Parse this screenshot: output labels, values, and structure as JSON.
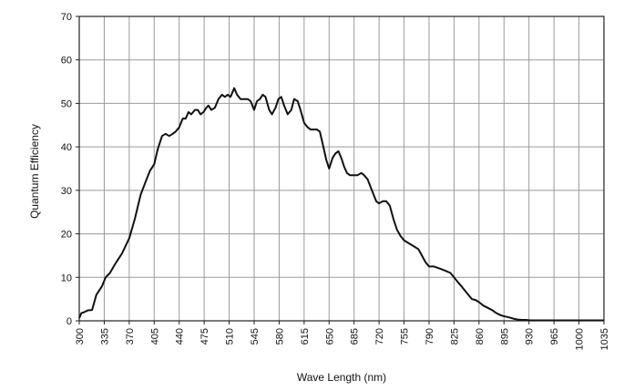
{
  "chart_data": {
    "type": "line",
    "title": "",
    "xlabel": "Wave Length (nm)",
    "ylabel": "Quantum Efficiency",
    "xlim": [
      300,
      1035
    ],
    "ylim": [
      0,
      70
    ],
    "x_ticks": [
      300,
      335,
      370,
      405,
      440,
      475,
      510,
      545,
      580,
      615,
      650,
      685,
      720,
      755,
      790,
      825,
      860,
      895,
      930,
      965,
      1000,
      1035
    ],
    "y_ticks": [
      0,
      10,
      20,
      30,
      40,
      50,
      60,
      70
    ],
    "grid": true,
    "legend": "none",
    "line_color": "#111111",
    "series": [
      {
        "x": [
          300,
          303,
          307,
          312,
          318,
          324,
          332,
          337,
          343,
          350,
          360,
          370,
          378,
          386,
          393,
          399,
          405,
          410,
          416,
          421,
          426,
          431,
          435,
          440,
          445,
          449,
          453,
          457,
          462,
          466,
          470,
          474,
          478,
          481,
          485,
          490,
          495,
          500,
          504,
          508,
          512,
          517,
          521,
          526,
          531,
          536,
          540,
          545,
          549,
          553,
          557,
          561,
          566,
          570,
          575,
          579,
          583,
          587,
          592,
          597,
          601,
          606,
          610,
          615,
          620,
          624,
          629,
          633,
          637,
          642,
          646,
          650,
          655,
          659,
          663,
          667,
          671,
          675,
          679,
          685,
          690,
          695,
          699,
          704,
          710,
          716,
          720,
          725,
          730,
          735,
          740,
          745,
          750,
          755,
          760,
          765,
          770,
          775,
          780,
          785,
          790,
          797,
          805,
          813,
          820,
          825,
          830,
          835,
          840,
          845,
          850,
          855,
          860,
          866,
          872,
          878,
          884,
          890,
          896,
          902,
          908,
          914,
          920,
          926,
          932,
          938,
          944,
          950,
          956,
          962,
          968,
          974,
          980,
          986,
          992,
          998,
          1004,
          1010,
          1016,
          1022,
          1028,
          1035
        ],
        "values": [
          0.6,
          1.8,
          2.0,
          2.4,
          2.5,
          6.0,
          8.0,
          10.0,
          11.0,
          13.0,
          15.5,
          19.0,
          23.5,
          29.0,
          32.0,
          34.5,
          36.0,
          39.5,
          42.5,
          43.0,
          42.5,
          43.0,
          43.5,
          44.5,
          46.5,
          46.5,
          48.0,
          47.5,
          48.5,
          48.5,
          47.5,
          48.0,
          49.0,
          49.5,
          48.5,
          49.0,
          51.0,
          52.0,
          51.5,
          52.0,
          51.5,
          53.5,
          52.0,
          51.0,
          51.0,
          51.0,
          50.5,
          48.5,
          50.5,
          51.0,
          52.0,
          51.5,
          48.5,
          47.5,
          49.0,
          51.0,
          51.5,
          49.5,
          47.5,
          48.5,
          51.0,
          50.5,
          48.5,
          45.5,
          44.5,
          44.0,
          44.0,
          44.0,
          43.5,
          40.0,
          37.0,
          35.0,
          37.5,
          38.5,
          39.0,
          37.5,
          35.5,
          34.0,
          33.5,
          33.5,
          33.5,
          34.0,
          33.5,
          32.5,
          30.0,
          27.5,
          27.0,
          27.5,
          27.5,
          26.5,
          23.5,
          21.0,
          19.5,
          18.5,
          18.0,
          17.5,
          17.0,
          16.5,
          15.0,
          13.5,
          12.5,
          12.5,
          12.0,
          11.5,
          11.0,
          10.0,
          9.0,
          8.0,
          7.0,
          6.0,
          5.0,
          4.8,
          4.3,
          3.5,
          3.0,
          2.5,
          1.8,
          1.3,
          1.0,
          0.8,
          0.5,
          0.3,
          0.2,
          0.2,
          0.1,
          0.1,
          0.1,
          0.1,
          0.1,
          0.1,
          0.1,
          0.1,
          0.1,
          0.1,
          0.1,
          0.1,
          0.1,
          0.1,
          0.1,
          0.1,
          0.1,
          0.1
        ]
      }
    ]
  }
}
